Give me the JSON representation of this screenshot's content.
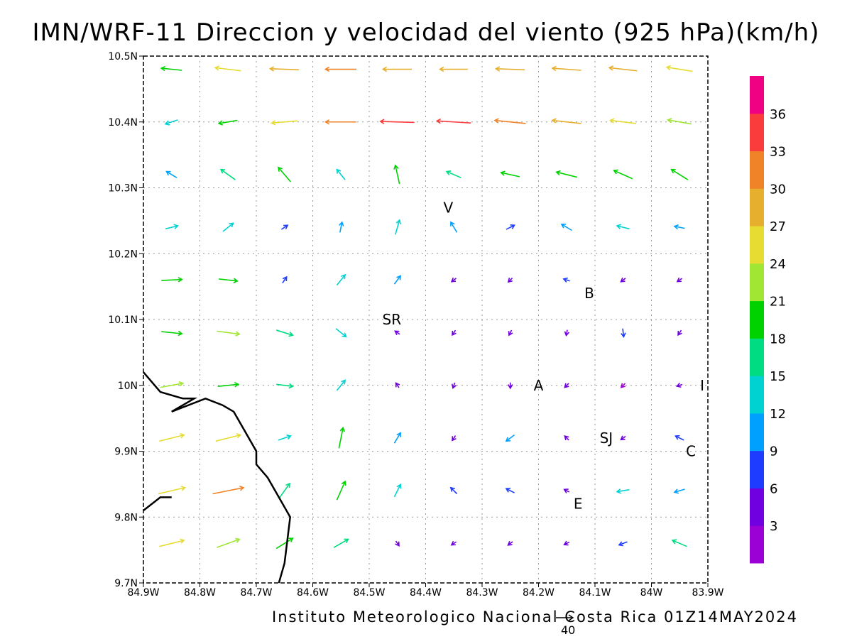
{
  "title": "IMN/WRF-11 Direccion y velocidad del viento (925 hPa)(km/h)",
  "footer": "Instituto Meteorologico Nacional Costa Rica 01Z14MAY2024",
  "reference_vector": {
    "value": "40",
    "magnitude": 40
  },
  "colorbar": {
    "labels": [
      "3",
      "6",
      "9",
      "12",
      "15",
      "18",
      "21",
      "24",
      "27",
      "30",
      "33",
      "36"
    ],
    "colors": [
      "#9b00d4",
      "#7000e0",
      "#1e3cff",
      "#00a0ff",
      "#00d2d2",
      "#00dc82",
      "#00d200",
      "#a0e632",
      "#e6dc32",
      "#e6af2d",
      "#f08228",
      "#fa3c3c",
      "#f00082"
    ]
  },
  "axes": {
    "x_ticks": [
      "84.9W",
      "84.8W",
      "84.7W",
      "84.6W",
      "84.5W",
      "84.4W",
      "84.3W",
      "84.2W",
      "84.1W",
      "84W",
      "83.9W"
    ],
    "y_ticks": [
      "9.7N",
      "9.8N",
      "9.9N",
      "10N",
      "10.1N",
      "10.2N",
      "10.3N",
      "10.4N",
      "10.5N"
    ],
    "lon_range": [
      -84.9,
      -83.9
    ],
    "lat_range": [
      9.7,
      10.5
    ],
    "grid": true
  },
  "places": [
    {
      "label": "V",
      "lon": -84.36,
      "lat": 10.27
    },
    {
      "label": "B",
      "lon": -84.11,
      "lat": 10.14
    },
    {
      "label": "SR",
      "lon": -84.46,
      "lat": 10.1
    },
    {
      "label": "A",
      "lon": -84.2,
      "lat": 10.0
    },
    {
      "label": "I",
      "lon": -83.91,
      "lat": 10.0
    },
    {
      "label": "SJ",
      "lon": -84.08,
      "lat": 9.92
    },
    {
      "label": "C",
      "lon": -83.93,
      "lat": 9.9
    },
    {
      "label": "E",
      "lon": -84.13,
      "lat": 9.82
    }
  ],
  "coastline": [
    [
      -84.9,
      10.02
    ],
    [
      -84.87,
      9.99
    ],
    [
      -84.83,
      9.98
    ],
    [
      -84.81,
      9.98
    ],
    [
      -84.85,
      9.96
    ],
    [
      -84.79,
      9.98
    ],
    [
      -84.76,
      9.97
    ],
    [
      -84.74,
      9.96
    ],
    [
      -84.72,
      9.93
    ],
    [
      -84.7,
      9.9
    ],
    [
      -84.7,
      9.88
    ],
    [
      -84.68,
      9.86
    ],
    [
      -84.66,
      9.83
    ],
    [
      -84.64,
      9.8
    ],
    [
      -84.65,
      9.73
    ],
    [
      -84.66,
      9.7
    ]
  ],
  "coastline2": [
    [
      -84.9,
      9.81
    ],
    [
      -84.87,
      9.83
    ],
    [
      -84.85,
      9.83
    ]
  ],
  "wind_vectors": [
    {
      "lon": -84.85,
      "lat": 10.48,
      "u": -20,
      "v": 2
    },
    {
      "lon": -84.75,
      "lat": 10.48,
      "u": -25,
      "v": 3
    },
    {
      "lon": -84.65,
      "lat": 10.48,
      "u": -28,
      "v": 1
    },
    {
      "lon": -84.55,
      "lat": 10.48,
      "u": -30,
      "v": 0
    },
    {
      "lon": -84.45,
      "lat": 10.48,
      "u": -28,
      "v": 0
    },
    {
      "lon": -84.35,
      "lat": 10.48,
      "u": -27,
      "v": 0
    },
    {
      "lon": -84.25,
      "lat": 10.48,
      "u": -28,
      "v": 1
    },
    {
      "lon": -84.15,
      "lat": 10.48,
      "u": -28,
      "v": 2
    },
    {
      "lon": -84.05,
      "lat": 10.48,
      "u": -27,
      "v": 3
    },
    {
      "lon": -83.95,
      "lat": 10.48,
      "u": -25,
      "v": 4
    },
    {
      "lon": -84.85,
      "lat": 10.4,
      "u": -12,
      "v": -4
    },
    {
      "lon": -84.75,
      "lat": 10.4,
      "u": -18,
      "v": -3
    },
    {
      "lon": -84.65,
      "lat": 10.4,
      "u": -25,
      "v": -2
    },
    {
      "lon": -84.55,
      "lat": 10.4,
      "u": -30,
      "v": 0
    },
    {
      "lon": -84.45,
      "lat": 10.4,
      "u": -33,
      "v": 1
    },
    {
      "lon": -84.35,
      "lat": 10.4,
      "u": -33,
      "v": 2
    },
    {
      "lon": -84.25,
      "lat": 10.4,
      "u": -30,
      "v": 3
    },
    {
      "lon": -84.15,
      "lat": 10.4,
      "u": -28,
      "v": 3
    },
    {
      "lon": -84.05,
      "lat": 10.4,
      "u": -25,
      "v": 3
    },
    {
      "lon": -83.95,
      "lat": 10.4,
      "u": -23,
      "v": 4
    },
    {
      "lon": -84.85,
      "lat": 10.32,
      "u": -10,
      "v": 6
    },
    {
      "lon": -84.75,
      "lat": 10.32,
      "u": -14,
      "v": 10
    },
    {
      "lon": -84.65,
      "lat": 10.32,
      "u": -12,
      "v": 14
    },
    {
      "lon": -84.55,
      "lat": 10.32,
      "u": -8,
      "v": 10
    },
    {
      "lon": -84.45,
      "lat": 10.32,
      "u": -4,
      "v": 18
    },
    {
      "lon": -84.35,
      "lat": 10.32,
      "u": -14,
      "v": 6
    },
    {
      "lon": -84.25,
      "lat": 10.32,
      "u": -18,
      "v": 4
    },
    {
      "lon": -84.15,
      "lat": 10.32,
      "u": -20,
      "v": 5
    },
    {
      "lon": -84.05,
      "lat": 10.32,
      "u": -18,
      "v": 8
    },
    {
      "lon": -83.95,
      "lat": 10.32,
      "u": -16,
      "v": 10
    },
    {
      "lon": -84.85,
      "lat": 10.24,
      "u": 12,
      "v": 3
    },
    {
      "lon": -84.75,
      "lat": 10.24,
      "u": 10,
      "v": 8
    },
    {
      "lon": -84.65,
      "lat": 10.24,
      "u": 6,
      "v": 4
    },
    {
      "lon": -84.55,
      "lat": 10.24,
      "u": 2,
      "v": 10
    },
    {
      "lon": -84.45,
      "lat": 10.24,
      "u": 4,
      "v": 14
    },
    {
      "lon": -84.35,
      "lat": 10.24,
      "u": -6,
      "v": 10
    },
    {
      "lon": -84.25,
      "lat": 10.24,
      "u": 8,
      "v": 4
    },
    {
      "lon": -84.15,
      "lat": 10.24,
      "u": -10,
      "v": 6
    },
    {
      "lon": -84.05,
      "lat": 10.24,
      "u": -12,
      "v": 3
    },
    {
      "lon": -83.95,
      "lat": 10.24,
      "u": -10,
      "v": 2
    },
    {
      "lon": -84.85,
      "lat": 10.16,
      "u": 20,
      "v": 1
    },
    {
      "lon": -84.75,
      "lat": 10.16,
      "u": 18,
      "v": -2
    },
    {
      "lon": -84.65,
      "lat": 10.16,
      "u": 4,
      "v": 6
    },
    {
      "lon": -84.55,
      "lat": 10.16,
      "u": 8,
      "v": 10
    },
    {
      "lon": -84.45,
      "lat": 10.16,
      "u": 6,
      "v": 8
    },
    {
      "lon": -84.35,
      "lat": 10.16,
      "u": -4,
      "v": -3
    },
    {
      "lon": -84.25,
      "lat": 10.16,
      "u": -3,
      "v": -3
    },
    {
      "lon": -84.15,
      "lat": 10.16,
      "u": -6,
      "v": 2
    },
    {
      "lon": -84.05,
      "lat": 10.16,
      "u": -4,
      "v": -3
    },
    {
      "lon": -83.95,
      "lat": 10.16,
      "u": -3,
      "v": -2
    },
    {
      "lon": -84.85,
      "lat": 10.08,
      "u": 20,
      "v": -2
    },
    {
      "lon": -84.75,
      "lat": 10.08,
      "u": 22,
      "v": -3
    },
    {
      "lon": -84.65,
      "lat": 10.08,
      "u": 16,
      "v": -5
    },
    {
      "lon": -84.55,
      "lat": 10.08,
      "u": 10,
      "v": -8
    },
    {
      "lon": -84.45,
      "lat": 10.08,
      "u": -3,
      "v": 2
    },
    {
      "lon": -84.35,
      "lat": 10.08,
      "u": -2,
      "v": -3
    },
    {
      "lon": -84.25,
      "lat": 10.08,
      "u": -2,
      "v": -4
    },
    {
      "lon": -84.15,
      "lat": 10.08,
      "u": -1,
      "v": -5
    },
    {
      "lon": -84.05,
      "lat": 10.08,
      "u": 1,
      "v": -8
    },
    {
      "lon": -83.95,
      "lat": 10.08,
      "u": -2,
      "v": -3
    },
    {
      "lon": -84.85,
      "lat": 10.0,
      "u": 22,
      "v": 4
    },
    {
      "lon": -84.75,
      "lat": 10.0,
      "u": 20,
      "v": 2
    },
    {
      "lon": -84.65,
      "lat": 10.0,
      "u": 16,
      "v": -2
    },
    {
      "lon": -84.55,
      "lat": 10.0,
      "u": 8,
      "v": 10
    },
    {
      "lon": -84.45,
      "lat": 10.0,
      "u": -2,
      "v": 3
    },
    {
      "lon": -84.35,
      "lat": 10.0,
      "u": -1,
      "v": -3
    },
    {
      "lon": -84.25,
      "lat": 10.0,
      "u": 0,
      "v": -5
    },
    {
      "lon": -84.15,
      "lat": 10.0,
      "u": -3,
      "v": -3
    },
    {
      "lon": -84.05,
      "lat": 10.0,
      "u": -2,
      "v": -2
    },
    {
      "lon": -83.95,
      "lat": 10.0,
      "u": -3,
      "v": -1
    },
    {
      "lon": -84.85,
      "lat": 9.92,
      "u": 24,
      "v": 6
    },
    {
      "lon": -84.75,
      "lat": 9.92,
      "u": 24,
      "v": 6
    },
    {
      "lon": -84.65,
      "lat": 9.92,
      "u": 12,
      "v": 4
    },
    {
      "lon": -84.55,
      "lat": 9.92,
      "u": 4,
      "v": 20
    },
    {
      "lon": -84.45,
      "lat": 9.92,
      "u": 6,
      "v": 10
    },
    {
      "lon": -84.35,
      "lat": 9.92,
      "u": -2,
      "v": -3
    },
    {
      "lon": -84.25,
      "lat": 9.92,
      "u": -8,
      "v": -6
    },
    {
      "lon": -84.15,
      "lat": 9.92,
      "u": -3,
      "v": 3
    },
    {
      "lon": -84.05,
      "lat": 9.92,
      "u": -4,
      "v": -3
    },
    {
      "lon": -83.95,
      "lat": 9.92,
      "u": -8,
      "v": 4
    },
    {
      "lon": -84.85,
      "lat": 9.84,
      "u": 26,
      "v": 6
    },
    {
      "lon": -84.75,
      "lat": 9.84,
      "u": 30,
      "v": 6
    },
    {
      "lon": -84.65,
      "lat": 9.84,
      "u": 10,
      "v": 14
    },
    {
      "lon": -84.55,
      "lat": 9.84,
      "u": 8,
      "v": 18
    },
    {
      "lon": -84.45,
      "lat": 9.84,
      "u": 6,
      "v": 12
    },
    {
      "lon": -84.35,
      "lat": 9.84,
      "u": -6,
      "v": 6
    },
    {
      "lon": -84.25,
      "lat": 9.84,
      "u": -8,
      "v": 4
    },
    {
      "lon": -84.15,
      "lat": 9.84,
      "u": -4,
      "v": 2
    },
    {
      "lon": -84.05,
      "lat": 9.84,
      "u": -12,
      "v": -2
    },
    {
      "lon": -83.95,
      "lat": 9.84,
      "u": -10,
      "v": -3
    },
    {
      "lon": -84.85,
      "lat": 9.76,
      "u": 24,
      "v": 6
    },
    {
      "lon": -84.75,
      "lat": 9.76,
      "u": 22,
      "v": 8
    },
    {
      "lon": -84.65,
      "lat": 9.76,
      "u": 16,
      "v": 10
    },
    {
      "lon": -84.55,
      "lat": 9.76,
      "u": 14,
      "v": 8
    },
    {
      "lon": -84.45,
      "lat": 9.76,
      "u": 2,
      "v": -3
    },
    {
      "lon": -84.35,
      "lat": 9.76,
      "u": -3,
      "v": -2
    },
    {
      "lon": -84.25,
      "lat": 9.76,
      "u": -4,
      "v": -3
    },
    {
      "lon": -84.15,
      "lat": 9.76,
      "u": -4,
      "v": -2
    },
    {
      "lon": -84.05,
      "lat": 9.76,
      "u": -8,
      "v": -3
    },
    {
      "lon": -83.95,
      "lat": 9.76,
      "u": -14,
      "v": 6
    }
  ]
}
